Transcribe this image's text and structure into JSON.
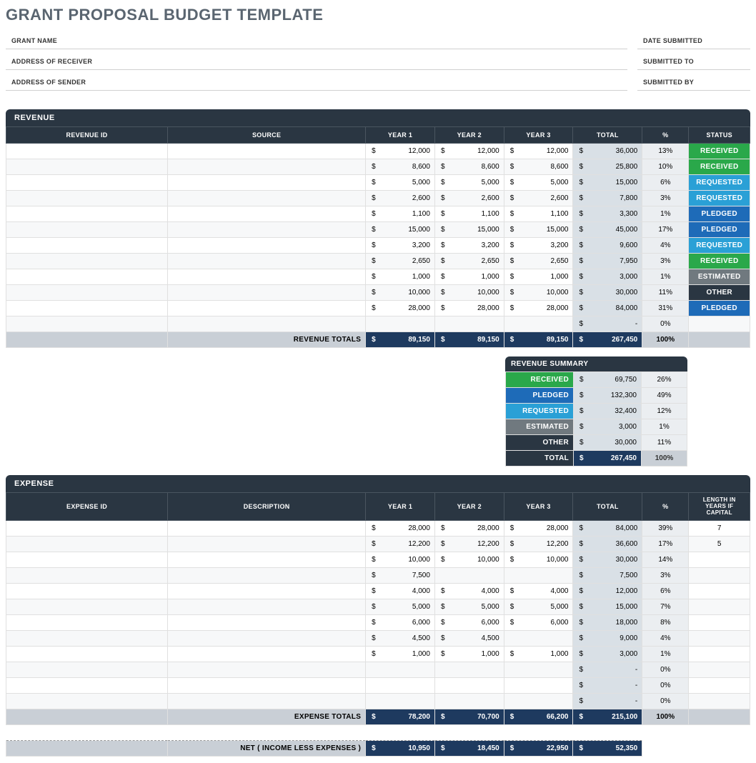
{
  "title": "GRANT PROPOSAL BUDGET TEMPLATE",
  "meta_left": [
    "GRANT NAME",
    "ADDRESS OF RECEIVER",
    "ADDRESS OF SENDER"
  ],
  "meta_right": [
    "DATE SUBMITTED",
    "SUBMITTED TO",
    "SUBMITTED BY"
  ],
  "revenue": {
    "title": "REVENUE",
    "headers": [
      "REVENUE ID",
      "SOURCE",
      "YEAR 1",
      "YEAR 2",
      "YEAR 3",
      "TOTAL",
      "%",
      "STATUS"
    ],
    "rows": [
      {
        "y1": "12,000",
        "y2": "12,000",
        "y3": "12,000",
        "total": "36,000",
        "pct": "13%",
        "status": "RECEIVED",
        "color": "#2aa84a"
      },
      {
        "y1": "8,600",
        "y2": "8,600",
        "y3": "8,600",
        "total": "25,800",
        "pct": "10%",
        "status": "RECEIVED",
        "color": "#2aa84a"
      },
      {
        "y1": "5,000",
        "y2": "5,000",
        "y3": "5,000",
        "total": "15,000",
        "pct": "6%",
        "status": "REQUESTED",
        "color": "#2aa0d6"
      },
      {
        "y1": "2,600",
        "y2": "2,600",
        "y3": "2,600",
        "total": "7,800",
        "pct": "3%",
        "status": "REQUESTED",
        "color": "#2aa0d6"
      },
      {
        "y1": "1,100",
        "y2": "1,100",
        "y3": "1,100",
        "total": "3,300",
        "pct": "1%",
        "status": "PLEDGED",
        "color": "#1e6bb8"
      },
      {
        "y1": "15,000",
        "y2": "15,000",
        "y3": "15,000",
        "total": "45,000",
        "pct": "17%",
        "status": "PLEDGED",
        "color": "#1e6bb8"
      },
      {
        "y1": "3,200",
        "y2": "3,200",
        "y3": "3,200",
        "total": "9,600",
        "pct": "4%",
        "status": "REQUESTED",
        "color": "#2aa0d6"
      },
      {
        "y1": "2,650",
        "y2": "2,650",
        "y3": "2,650",
        "total": "7,950",
        "pct": "3%",
        "status": "RECEIVED",
        "color": "#2aa84a"
      },
      {
        "y1": "1,000",
        "y2": "1,000",
        "y3": "1,000",
        "total": "3,000",
        "pct": "1%",
        "status": "ESTIMATED",
        "color": "#70797f"
      },
      {
        "y1": "10,000",
        "y2": "10,000",
        "y3": "10,000",
        "total": "30,000",
        "pct": "11%",
        "status": "OTHER",
        "color": "#2a3642"
      },
      {
        "y1": "28,000",
        "y2": "28,000",
        "y3": "28,000",
        "total": "84,000",
        "pct": "31%",
        "status": "PLEDGED",
        "color": "#1e6bb8"
      },
      {
        "y1": "",
        "y2": "",
        "y3": "",
        "total": "-",
        "pct": "0%",
        "status": "",
        "color": ""
      }
    ],
    "totals_label": "REVENUE TOTALS",
    "totals": {
      "y1": "89,150",
      "y2": "89,150",
      "y3": "89,150",
      "total": "267,450",
      "pct": "100%"
    }
  },
  "summary": {
    "title": "REVENUE SUMMARY",
    "rows": [
      {
        "label": "RECEIVED",
        "amt": "69,750",
        "pct": "26%",
        "color": "#2aa84a"
      },
      {
        "label": "PLEDGED",
        "amt": "132,300",
        "pct": "49%",
        "color": "#1e6bb8"
      },
      {
        "label": "REQUESTED",
        "amt": "32,400",
        "pct": "12%",
        "color": "#2aa0d6"
      },
      {
        "label": "ESTIMATED",
        "amt": "3,000",
        "pct": "1%",
        "color": "#70797f"
      },
      {
        "label": "OTHER",
        "amt": "30,000",
        "pct": "11%",
        "color": "#2a3642"
      }
    ],
    "total_label": "TOTAL",
    "total_amt": "267,450",
    "total_pct": "100%"
  },
  "expense": {
    "title": "EXPENSE",
    "headers": [
      "EXPENSE ID",
      "DESCRIPTION",
      "YEAR 1",
      "YEAR 2",
      "YEAR 3",
      "TOTAL",
      "%",
      "LENGTH IN YEARS IF CAPITAL"
    ],
    "rows": [
      {
        "y1": "28,000",
        "y2": "28,000",
        "y3": "28,000",
        "total": "84,000",
        "pct": "39%",
        "len": "7"
      },
      {
        "y1": "12,200",
        "y2": "12,200",
        "y3": "12,200",
        "total": "36,600",
        "pct": "17%",
        "len": "5"
      },
      {
        "y1": "10,000",
        "y2": "10,000",
        "y3": "10,000",
        "total": "30,000",
        "pct": "14%",
        "len": ""
      },
      {
        "y1": "7,500",
        "y2": "",
        "y3": "",
        "total": "7,500",
        "pct": "3%",
        "len": ""
      },
      {
        "y1": "4,000",
        "y2": "4,000",
        "y3": "4,000",
        "total": "12,000",
        "pct": "6%",
        "len": ""
      },
      {
        "y1": "5,000",
        "y2": "5,000",
        "y3": "5,000",
        "total": "15,000",
        "pct": "7%",
        "len": ""
      },
      {
        "y1": "6,000",
        "y2": "6,000",
        "y3": "6,000",
        "total": "18,000",
        "pct": "8%",
        "len": ""
      },
      {
        "y1": "4,500",
        "y2": "4,500",
        "y3": "",
        "total": "9,000",
        "pct": "4%",
        "len": ""
      },
      {
        "y1": "1,000",
        "y2": "1,000",
        "y3": "1,000",
        "total": "3,000",
        "pct": "1%",
        "len": ""
      },
      {
        "y1": "",
        "y2": "",
        "y3": "",
        "total": "-",
        "pct": "0%",
        "len": ""
      },
      {
        "y1": "",
        "y2": "",
        "y3": "",
        "total": "-",
        "pct": "0%",
        "len": ""
      },
      {
        "y1": "",
        "y2": "",
        "y3": "",
        "total": "-",
        "pct": "0%",
        "len": ""
      }
    ],
    "totals_label": "EXPENSE TOTALS",
    "totals": {
      "y1": "78,200",
      "y2": "70,700",
      "y3": "66,200",
      "total": "215,100",
      "pct": "100%"
    }
  },
  "net": {
    "label": "NET ( INCOME LESS EXPENSES )",
    "y1": "10,950",
    "y2": "18,450",
    "y3": "22,950",
    "total": "52,350"
  },
  "currency_symbol": "$",
  "colors": {
    "header_bg": "#2a3642",
    "total_col_bg": "#d9e0e6",
    "pct_col_bg": "#ebeef1",
    "totals_row_bg": "#c9cfd6",
    "dark_total_bg": "#1e3a5f"
  }
}
